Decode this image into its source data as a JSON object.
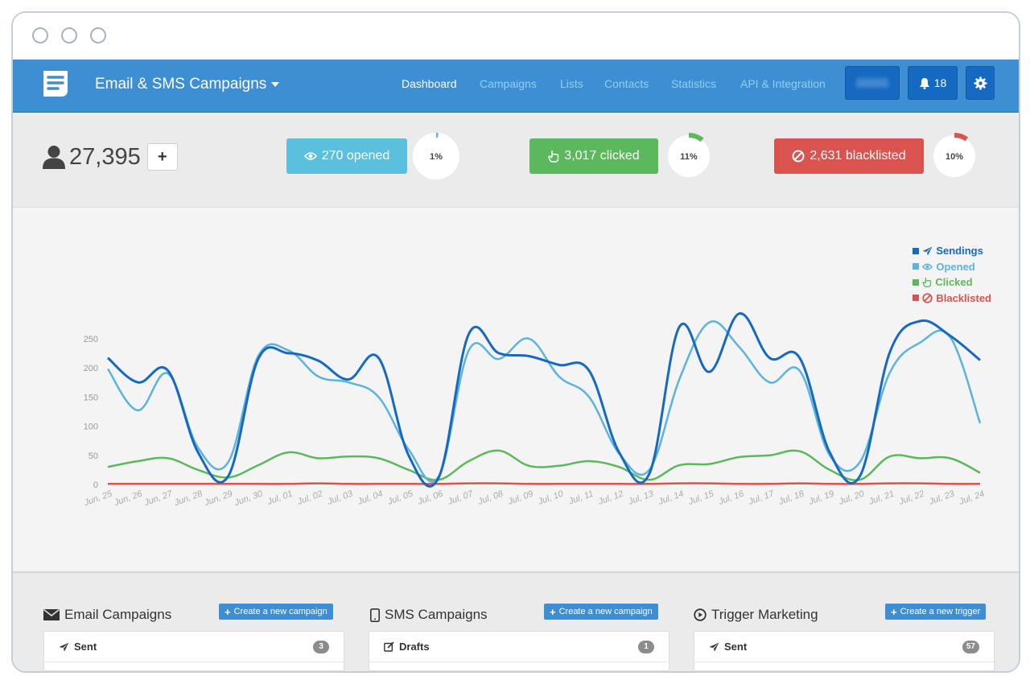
{
  "window": {
    "controls": [
      "window-dot-1",
      "window-dot-2",
      "window-dot-3"
    ]
  },
  "navbar": {
    "app_title": "Email & SMS Campaigns",
    "items": [
      {
        "label": "Dashboard",
        "active": true
      },
      {
        "label": "Campaigns",
        "active": false
      },
      {
        "label": "Lists",
        "active": false
      },
      {
        "label": "Contacts",
        "active": false
      },
      {
        "label": "Statistics",
        "active": false
      },
      {
        "label": "API & Integration",
        "active": false
      }
    ],
    "notifications_count": "18",
    "colors": {
      "bar": "#3d8ed3",
      "button": "#1669c0",
      "inactive_link": "#8fd0f2"
    }
  },
  "stats": {
    "contacts_count": "27,395",
    "opened": {
      "label": "270 opened",
      "percent_label": "1%",
      "percent": 1,
      "color": "#5bc0de"
    },
    "clicked": {
      "label": "3,017 clicked",
      "percent_label": "11%",
      "percent": 11,
      "color": "#5cb85c"
    },
    "blacklisted": {
      "label": "2,631 blacklisted",
      "percent_label": "10%",
      "percent": 10,
      "color": "#d9534f"
    }
  },
  "chart_data": {
    "type": "line",
    "x": [
      "Jun, 25",
      "Jun, 26",
      "Jun, 27",
      "Jun, 28",
      "Jun, 29",
      "Jun, 30",
      "Jul, 01",
      "Jul, 02",
      "Jul, 03",
      "Jul, 04",
      "Jul, 05",
      "Jul, 06",
      "Jul, 07",
      "Jul, 08",
      "Jul, 09",
      "Jul, 10",
      "Jul, 11",
      "Jul, 12",
      "Jul, 13",
      "Jul, 14",
      "Jul, 15",
      "Jul, 16",
      "Jul, 17",
      "Jul, 18",
      "Jul, 19",
      "Jul, 20",
      "Jul, 21",
      "Jul, 22",
      "Jul, 23",
      "Jul, 24"
    ],
    "ylim": [
      0,
      260
    ],
    "yticks": [
      0,
      50,
      100,
      150,
      200,
      250
    ],
    "grid": false,
    "legend_position": "top-right",
    "series": [
      {
        "name": "Sendings",
        "color": "#1669c0",
        "values": [
          217,
          175,
          195,
          55,
          14,
          215,
          225,
          212,
          180,
          217,
          50,
          12,
          258,
          225,
          220,
          205,
          195,
          55,
          18,
          270,
          193,
          293,
          217,
          217,
          55,
          14,
          227,
          280,
          255,
          213
        ]
      },
      {
        "name": "Opened",
        "color": "#5ab4dc",
        "values": [
          198,
          127,
          190,
          63,
          38,
          220,
          230,
          185,
          175,
          150,
          60,
          14,
          230,
          215,
          250,
          185,
          150,
          53,
          25,
          180,
          278,
          235,
          175,
          195,
          50,
          38,
          192,
          243,
          253,
          105
        ]
      },
      {
        "name": "Clicked",
        "color": "#5cb85c",
        "values": [
          30,
          40,
          45,
          25,
          12,
          33,
          55,
          45,
          48,
          45,
          25,
          8,
          40,
          58,
          32,
          32,
          40,
          30,
          8,
          33,
          35,
          47,
          50,
          57,
          25,
          8,
          48,
          45,
          45,
          20
        ]
      },
      {
        "name": "Blacklisted",
        "color": "#d9534f",
        "values": [
          1,
          1,
          1,
          1,
          1,
          1,
          1,
          2,
          1,
          1,
          1,
          1,
          2,
          2,
          1,
          1,
          1,
          1,
          1,
          2,
          2,
          1,
          1,
          2,
          1,
          1,
          2,
          2,
          1,
          1
        ]
      }
    ]
  },
  "bottom": {
    "email": {
      "title": "Email Campaigns",
      "button": "Create a new campaign",
      "row_label": "Sent",
      "count": "3"
    },
    "sms": {
      "title": "SMS Campaigns",
      "button": "Create a new campaign",
      "row_label": "Drafts",
      "count": "1"
    },
    "trigger": {
      "title": "Trigger Marketing",
      "button": "Create a new trigger",
      "row_label": "Sent",
      "count": "57"
    }
  }
}
